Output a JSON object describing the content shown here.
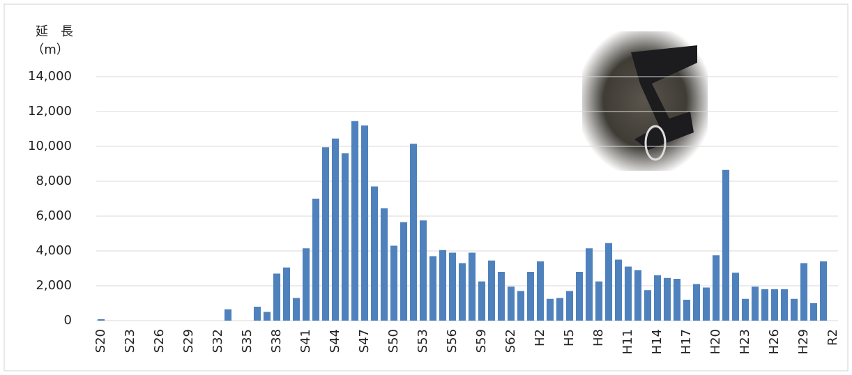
{
  "chart_data": {
    "type": "bar",
    "y_label_lines": [
      "延　長",
      "（m）"
    ],
    "categories": [
      "S20",
      null,
      null,
      "S23",
      null,
      null,
      "S26",
      null,
      null,
      "S29",
      null,
      null,
      "S32",
      null,
      null,
      "S35",
      null,
      null,
      "S38",
      null,
      null,
      "S41",
      null,
      null,
      "S44",
      null,
      null,
      "S47",
      null,
      null,
      "S50",
      null,
      null,
      "S53",
      null,
      null,
      "S56",
      null,
      null,
      "S59",
      null,
      null,
      "S62",
      null,
      null,
      "H2",
      null,
      null,
      "H5",
      null,
      null,
      "H8",
      null,
      null,
      "H11",
      null,
      null,
      "H14",
      null,
      null,
      "H17",
      null,
      null,
      "H20",
      null,
      null,
      "H23",
      null,
      null,
      "H26",
      null,
      null,
      "H29",
      null,
      null,
      "R2"
    ],
    "values": [
      80,
      0,
      0,
      0,
      0,
      0,
      0,
      0,
      0,
      0,
      0,
      0,
      0,
      650,
      0,
      0,
      800,
      500,
      2700,
      3050,
      1300,
      4150,
      7000,
      9950,
      10450,
      9600,
      11450,
      11200,
      7700,
      6450,
      4300,
      5650,
      10150,
      5750,
      3700,
      4050,
      3900,
      3300,
      3900,
      2250,
      3450,
      2800,
      1950,
      1700,
      2800,
      3400,
      1250,
      1300,
      1700,
      2800,
      4150,
      2250,
      4450,
      3500,
      3100,
      2900,
      1750,
      2600,
      2450,
      2400,
      1200,
      2100,
      1900,
      3750,
      8650,
      2750,
      1250,
      1950,
      1800,
      1800,
      1800,
      1250,
      3300,
      1000,
      3400,
      0
    ],
    "color": "#4f81bd",
    "ylim": [
      0,
      14000
    ],
    "yticks": [
      0,
      {
        "value": 2000,
        "label": "2,000"
      },
      {
        "value": 4000,
        "label": "4,000"
      },
      {
        "value": 6000,
        "label": "6,000"
      },
      {
        "value": 8000,
        "label": "8,000"
      },
      {
        "value": 10000,
        "label": "10,000"
      },
      {
        "value": 12000,
        "label": "12,000"
      },
      {
        "value": 14000,
        "label": "14,000"
      }
    ],
    "grid": true
  }
}
